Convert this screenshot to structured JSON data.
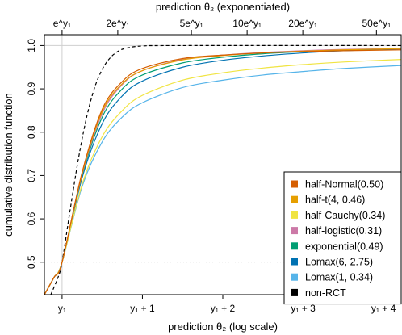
{
  "chart_data": {
    "type": "line",
    "top_axis_label": "prediction θ₂ (exponentiated)",
    "xlabel": "prediction θ₂ (log scale)",
    "ylabel": "cumulative distribution function",
    "x_range": [
      -0.22,
      4.22
    ],
    "ylim": [
      0.425,
      1.025
    ],
    "bottom_ticks": [
      {
        "value": 0,
        "label": "y₁"
      },
      {
        "value": 1,
        "label": "y₁ + 1"
      },
      {
        "value": 2,
        "label": "y₁ + 2"
      },
      {
        "value": 3,
        "label": "y₁ + 3"
      },
      {
        "value": 4,
        "label": "y₁ + 4"
      }
    ],
    "top_ticks": [
      {
        "value": 0,
        "label": "e^y₁"
      },
      {
        "value": 0.6931,
        "label": "2e^y₁"
      },
      {
        "value": 1.6094,
        "label": "5e^y₁"
      },
      {
        "value": 2.3026,
        "label": "10e^y₁"
      },
      {
        "value": 2.9957,
        "label": "20e^y₁"
      },
      {
        "value": 3.912,
        "label": "50e^y₁"
      }
    ],
    "y_ticks": [
      {
        "value": 0.5,
        "label": "0.5"
      },
      {
        "value": 0.6,
        "label": "0.6"
      },
      {
        "value": 0.7,
        "label": "0.7"
      },
      {
        "value": 0.8,
        "label": "0.8"
      },
      {
        "value": 0.9,
        "label": "0.9"
      },
      {
        "value": 1.0,
        "label": "1.0"
      }
    ],
    "reference_lines": {
      "vertical_x": 0,
      "horizontal_y": [
        0.5,
        1.0
      ]
    },
    "legend_position": "bottom-right",
    "series": [
      {
        "name": "half-Normal(0.50)",
        "color": "#D55E00",
        "dash": "solid",
        "x": [
          -0.22,
          -0.1,
          0,
          0.25,
          0.5,
          0.75,
          1.0,
          1.5,
          2.0,
          2.5,
          3.0,
          3.5,
          4.22
        ],
        "y": [
          0.425,
          0.465,
          0.5,
          0.708,
          0.853,
          0.917,
          0.947,
          0.97,
          0.978,
          0.983,
          0.986,
          0.988,
          0.99
        ]
      },
      {
        "name": "half-t(4, 0.46)",
        "color": "#E69F00",
        "dash": "solid",
        "x": [
          -0.22,
          -0.1,
          0,
          0.25,
          0.5,
          0.75,
          1.0,
          1.5,
          2.0,
          2.5,
          3.0,
          3.5,
          4.22
        ],
        "y": [
          0.425,
          0.465,
          0.5,
          0.705,
          0.848,
          0.912,
          0.942,
          0.967,
          0.977,
          0.983,
          0.987,
          0.99,
          0.993
        ]
      },
      {
        "name": "half-Cauchy(0.34)",
        "color": "#F0E442",
        "dash": "solid",
        "x": [
          -0.22,
          -0.1,
          0,
          0.25,
          0.5,
          0.75,
          1.0,
          1.5,
          2.0,
          2.5,
          3.0,
          3.5,
          4.22
        ],
        "y": [
          0.425,
          0.465,
          0.5,
          0.68,
          0.79,
          0.85,
          0.885,
          0.92,
          0.937,
          0.948,
          0.956,
          0.962,
          0.968
        ]
      },
      {
        "name": "half-logistic(0.31)",
        "color": "#CC79A7",
        "dash": "solid",
        "x": [
          -0.22,
          -0.1,
          0,
          0.25,
          0.5,
          0.75,
          1.0,
          1.5,
          2.0,
          2.5,
          3.0,
          3.5,
          4.22
        ],
        "y": [
          0.425,
          0.465,
          0.5,
          0.703,
          0.843,
          0.91,
          0.942,
          0.968,
          0.978,
          0.984,
          0.988,
          0.991,
          0.993
        ]
      },
      {
        "name": "exponential(0.49)",
        "color": "#009E73",
        "dash": "solid",
        "x": [
          -0.22,
          -0.1,
          0,
          0.25,
          0.5,
          0.75,
          1.0,
          1.5,
          2.0,
          2.5,
          3.0,
          3.5,
          4.22
        ],
        "y": [
          0.425,
          0.465,
          0.5,
          0.7,
          0.835,
          0.9,
          0.932,
          0.96,
          0.973,
          0.981,
          0.986,
          0.99,
          0.993
        ]
      },
      {
        "name": "Lomax(6, 2.75)",
        "color": "#0072B2",
        "dash": "solid",
        "x": [
          -0.22,
          -0.1,
          0,
          0.25,
          0.5,
          0.75,
          1.0,
          1.5,
          2.0,
          2.5,
          3.0,
          3.5,
          4.22
        ],
        "y": [
          0.425,
          0.465,
          0.5,
          0.695,
          0.82,
          0.884,
          0.918,
          0.95,
          0.966,
          0.976,
          0.983,
          0.988,
          0.992
        ]
      },
      {
        "name": "Lomax(1, 0.34)",
        "color": "#56B4E9",
        "dash": "solid",
        "x": [
          -0.22,
          -0.1,
          0,
          0.25,
          0.5,
          0.75,
          1.0,
          1.5,
          2.0,
          2.5,
          3.0,
          3.5,
          4.22
        ],
        "y": [
          0.425,
          0.465,
          0.5,
          0.675,
          0.778,
          0.835,
          0.868,
          0.903,
          0.92,
          0.932,
          0.94,
          0.947,
          0.954
        ]
      },
      {
        "name": "non-RCT",
        "color": "#000000",
        "dash": "dashed",
        "x": [
          -0.14,
          -0.05,
          0,
          0.1,
          0.2,
          0.3,
          0.4,
          0.5,
          0.6,
          0.7,
          0.8,
          1.0,
          1.5,
          4.22
        ],
        "y": [
          0.425,
          0.465,
          0.5,
          0.62,
          0.735,
          0.83,
          0.9,
          0.945,
          0.972,
          0.987,
          0.994,
          0.999,
          1.0,
          1.0
        ]
      }
    ]
  }
}
